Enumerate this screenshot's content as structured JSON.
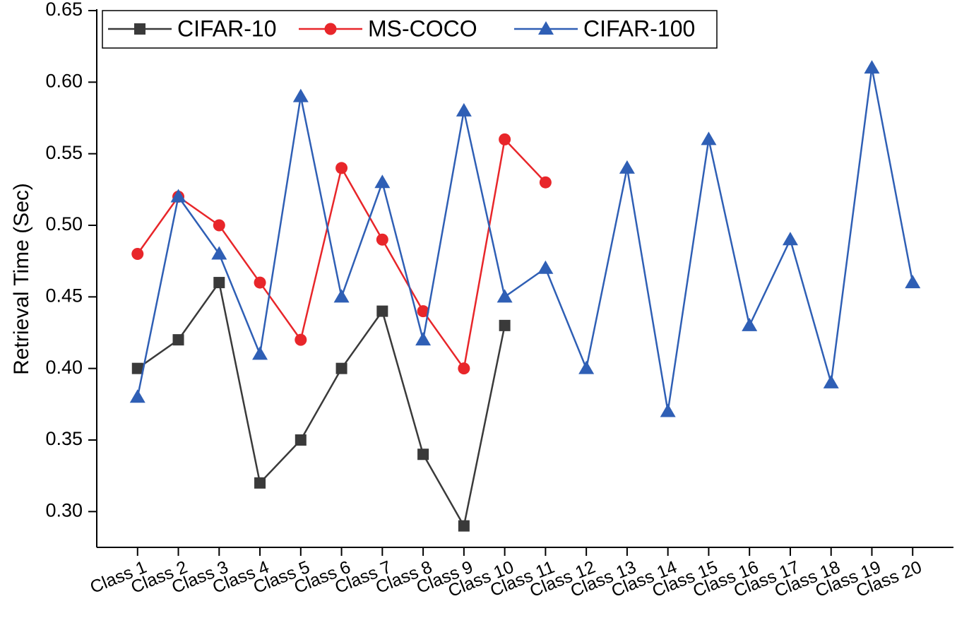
{
  "chart_data": {
    "type": "line",
    "ylabel": "Retrieval Time (Sec)",
    "categories": [
      "Class 1",
      "Class 2",
      "Class 3",
      "Class 4",
      "Class 5",
      "Class 6",
      "Class 7",
      "Class 8",
      "Class 9",
      "Class 10",
      "Class 11",
      "Class 12",
      "Class 13",
      "Class 14",
      "Class 15",
      "Class 16",
      "Class 17",
      "Class 18",
      "Class 19",
      "Class 20"
    ],
    "series": [
      {
        "name": "CIFAR-10",
        "color": "#3a3a3a",
        "marker": "square",
        "values": [
          0.4,
          0.42,
          0.46,
          0.32,
          0.35,
          0.4,
          0.44,
          0.34,
          0.29,
          0.43,
          null,
          null,
          null,
          null,
          null,
          null,
          null,
          null,
          null,
          null
        ]
      },
      {
        "name": "MS-COCO",
        "color": "#e8262a",
        "marker": "circle",
        "values": [
          0.48,
          0.52,
          0.5,
          0.46,
          0.42,
          0.54,
          0.49,
          0.44,
          0.4,
          0.56,
          0.53,
          null,
          null,
          null,
          null,
          null,
          null,
          null,
          null,
          null
        ]
      },
      {
        "name": "CIFAR-100",
        "color": "#2f5fb5",
        "marker": "triangle",
        "values": [
          0.38,
          0.52,
          0.48,
          0.41,
          0.59,
          0.45,
          0.53,
          0.42,
          0.58,
          0.45,
          0.47,
          0.4,
          0.54,
          0.37,
          0.56,
          0.43,
          0.49,
          0.39,
          0.61,
          0.46
        ]
      }
    ],
    "ylim": [
      0.275,
      0.65
    ],
    "yticks": [
      {
        "value": 0.3,
        "label": "0.30"
      },
      0.35,
      {
        "value": 0.4,
        "label": "0.40"
      },
      0.45,
      {
        "value": 0.5,
        "label": "0.50"
      },
      0.55,
      {
        "value": 0.6,
        "label": "0.60"
      },
      0.65
    ],
    "legend": "top-left"
  }
}
